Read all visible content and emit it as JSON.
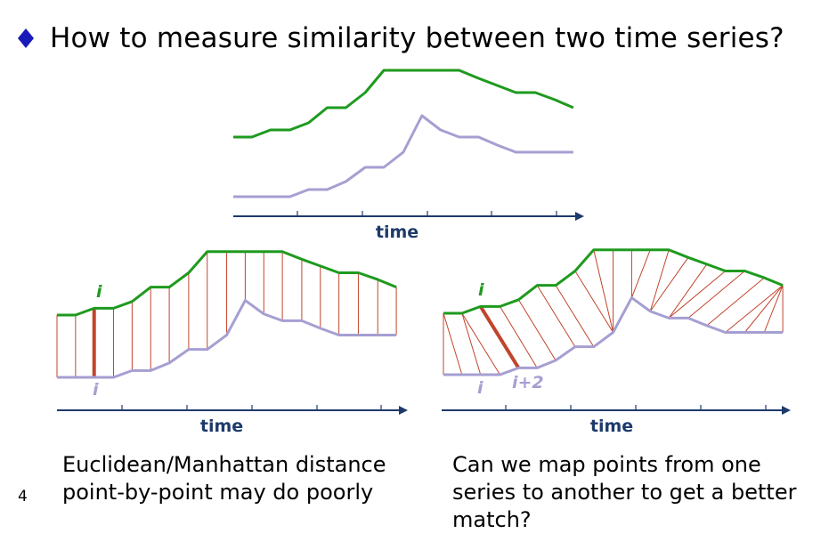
{
  "slide": {
    "title": "How to measure similarity between two time series?",
    "page_number": "4"
  },
  "labels": {
    "time": "time",
    "i": "i",
    "i_plus_2": "i+2"
  },
  "captions": {
    "left": "Euclidean/Manhattan distance point-by-point may do poorly",
    "right": "Can we map points from one series to another to get a better match?"
  },
  "colors": {
    "bullet": "#1a1ab8",
    "series_top": "#1e9a1e",
    "series_bottom": "#a59fd2",
    "connector": "#c0452c",
    "connector_highlight": "#c0452c",
    "axis": "#1d3a6b",
    "label_green": "#1e9a1e",
    "label_purple": "#a59fd2"
  }
}
